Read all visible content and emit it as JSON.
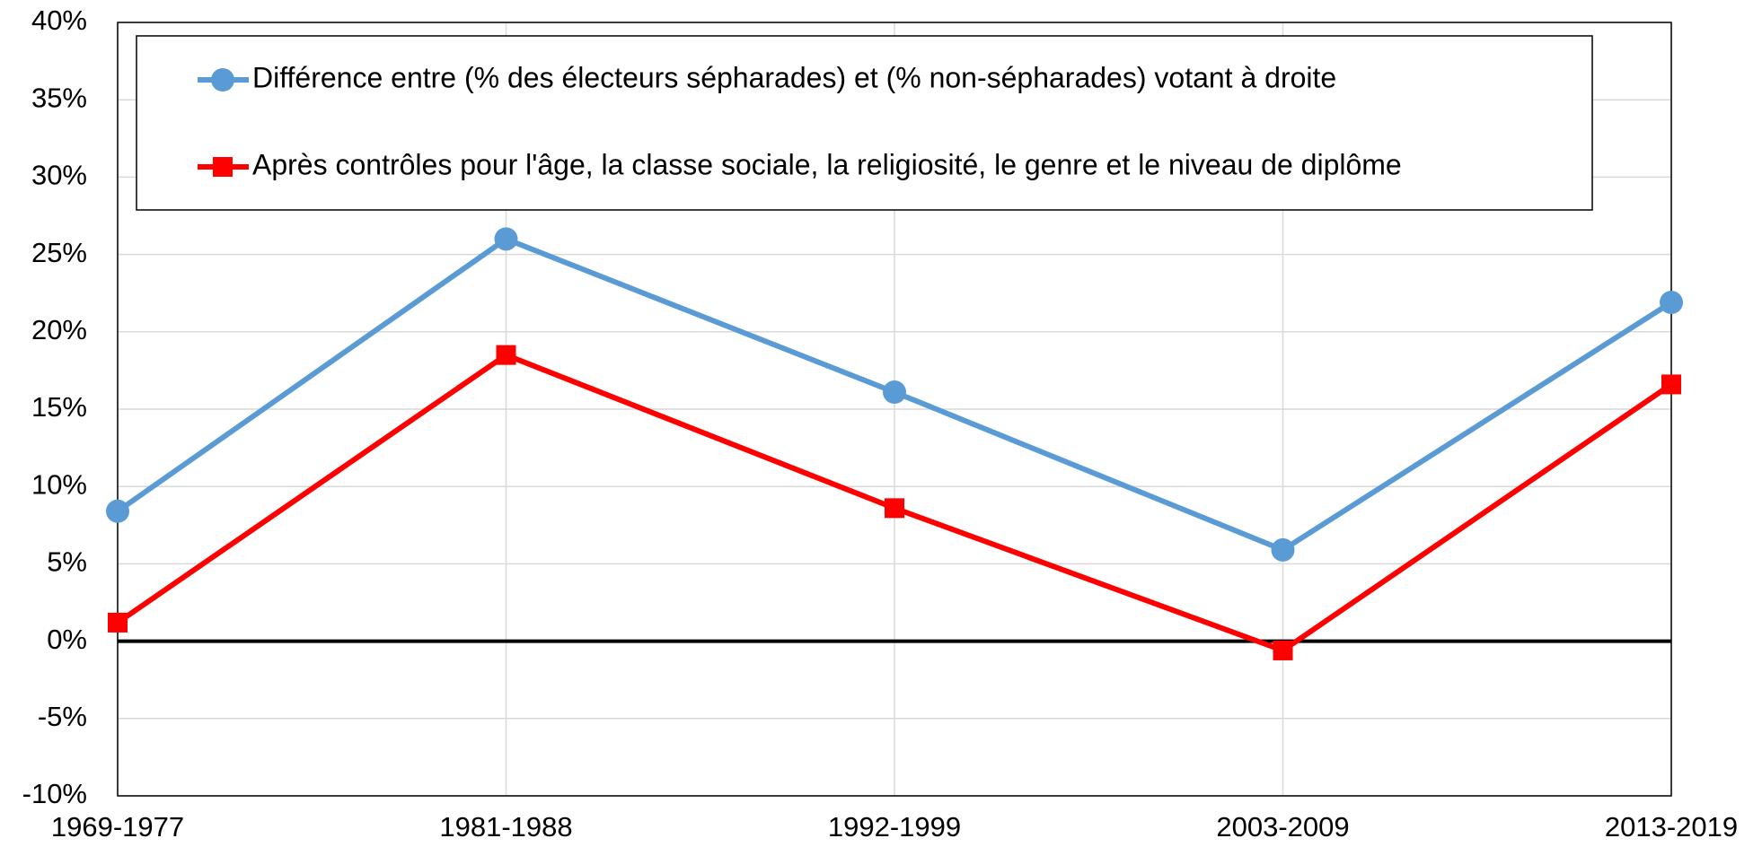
{
  "chart_data": {
    "type": "line",
    "categories": [
      "1969-1977",
      "1981-1988",
      "1992-1999",
      "2003-2009",
      "2013-2019"
    ],
    "series": [
      {
        "name": "Différence entre (% des électeurs sépharades) et (% non-sépharades) votant à droite",
        "color": "#5b9bd5",
        "marker": "circle",
        "values": [
          8.4,
          26.0,
          16.1,
          5.9,
          21.9
        ]
      },
      {
        "name": "Après contrôles pour l'âge, la classe sociale, la religiosité, le genre et le niveau de diplôme",
        "color": "#ff0000",
        "marker": "square",
        "values": [
          1.2,
          18.5,
          8.6,
          -0.6,
          16.6
        ]
      }
    ],
    "ylim": [
      -10,
      40
    ],
    "yticks": [
      {
        "value": -10,
        "label": "-10%"
      },
      {
        "value": -5,
        "label": "-5%"
      },
      {
        "value": 0,
        "label": "0%"
      },
      {
        "value": 5,
        "label": "5%"
      },
      {
        "value": 10,
        "label": "10%"
      },
      {
        "value": 15,
        "label": "15%"
      },
      {
        "value": 20,
        "label": "20%"
      },
      {
        "value": 25,
        "label": "25%"
      },
      {
        "value": 30,
        "label": "30%"
      },
      {
        "value": 35,
        "label": "35%"
      },
      {
        "value": 40,
        "label": "40%"
      }
    ],
    "grid": true,
    "legend": "top"
  }
}
